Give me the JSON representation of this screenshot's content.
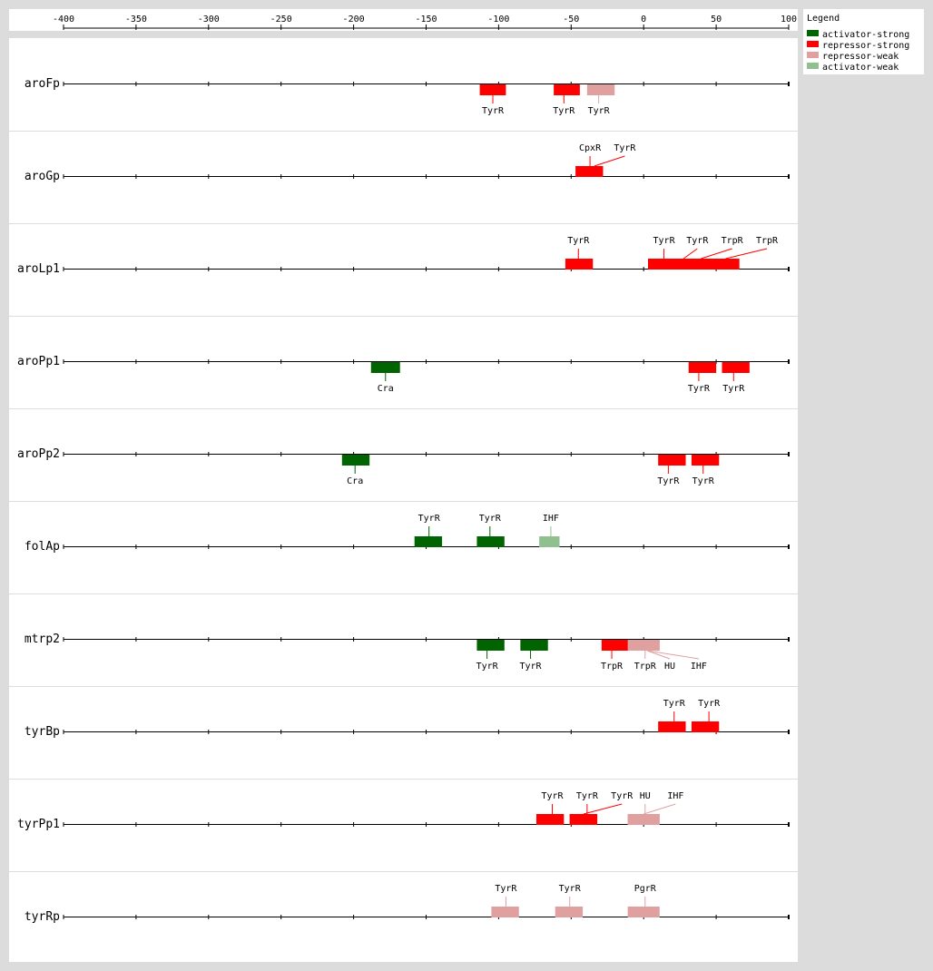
{
  "axis": {
    "ticks": [
      "-400",
      "-350",
      "-300",
      "-250",
      "-200",
      "-150",
      "-100",
      "-50",
      "0",
      "50",
      "100"
    ],
    "min": -400,
    "max": 100
  },
  "legend": {
    "title": "Legend",
    "items": [
      {
        "label": "activator-strong",
        "color": "#006400"
      },
      {
        "label": "repressor-strong",
        "color": "#ff0000"
      },
      {
        "label": "repressor-weak",
        "color": "#e0a0a0"
      },
      {
        "label": "activator-weak",
        "color": "#90c090"
      }
    ]
  },
  "promoters": [
    {
      "name": "aroFp",
      "sites": [
        {
          "label": "TyrR",
          "type": "repressor-strong",
          "start": -113,
          "end": -95,
          "side": "below",
          "label_pos": -104
        },
        {
          "label": "TyrR",
          "type": "repressor-strong",
          "start": -62,
          "end": -44,
          "side": "below",
          "label_pos": -55
        },
        {
          "label": "TyrR",
          "type": "repressor-weak",
          "start": -39,
          "end": -20,
          "side": "below",
          "label_pos": -31
        }
      ]
    },
    {
      "name": "aroGp",
      "sites": [
        {
          "label": "CpxR",
          "type": "repressor-strong",
          "start": -47,
          "end": -28,
          "side": "above",
          "label_pos": -37
        },
        {
          "label": "TyrR",
          "type": "repressor-strong",
          "start": -40,
          "end": -28,
          "side": "above",
          "label_pos": -13
        }
      ]
    },
    {
      "name": "aroLp1",
      "sites": [
        {
          "label": "TyrR",
          "type": "repressor-strong",
          "start": -54,
          "end": -35,
          "side": "above",
          "label_pos": -45
        },
        {
          "label": "TyrR",
          "type": "repressor-strong",
          "start": 3,
          "end": 22,
          "side": "above",
          "label_pos": 14
        },
        {
          "label": "TyrR",
          "type": "repressor-strong",
          "start": 18,
          "end": 37,
          "side": "above",
          "label_pos": 37
        },
        {
          "label": "TrpR",
          "type": "repressor-strong",
          "start": 30,
          "end": 49,
          "side": "above",
          "label_pos": 61
        },
        {
          "label": "TrpR",
          "type": "repressor-strong",
          "start": 47,
          "end": 66,
          "side": "above",
          "label_pos": 85
        }
      ]
    },
    {
      "name": "aroPp1",
      "sites": [
        {
          "label": "Cra",
          "type": "activator-strong",
          "start": -188,
          "end": -168,
          "side": "below",
          "label_pos": -178
        },
        {
          "label": "TyrR",
          "type": "repressor-strong",
          "start": 31,
          "end": 50,
          "side": "below",
          "label_pos": 38
        },
        {
          "label": "TyrR",
          "type": "repressor-strong",
          "start": 54,
          "end": 73,
          "side": "below",
          "label_pos": 62
        }
      ]
    },
    {
      "name": "aroPp2",
      "sites": [
        {
          "label": "Cra",
          "type": "activator-strong",
          "start": -208,
          "end": -189,
          "side": "below",
          "label_pos": -199
        },
        {
          "label": "TyrR",
          "type": "repressor-strong",
          "start": 10,
          "end": 29,
          "side": "below",
          "label_pos": 17
        },
        {
          "label": "TyrR",
          "type": "repressor-strong",
          "start": 33,
          "end": 52,
          "side": "below",
          "label_pos": 41
        }
      ]
    },
    {
      "name": "folAp",
      "sites": [
        {
          "label": "TyrR",
          "type": "activator-strong",
          "start": -158,
          "end": -139,
          "side": "above",
          "label_pos": -148
        },
        {
          "label": "TyrR",
          "type": "activator-strong",
          "start": -115,
          "end": -96,
          "side": "above",
          "label_pos": -106
        },
        {
          "label": "IHF",
          "type": "activator-weak",
          "start": -72,
          "end": -58,
          "side": "above",
          "label_pos": -64
        }
      ]
    },
    {
      "name": "mtrp2",
      "sites": [
        {
          "label": "TyrR",
          "type": "activator-strong",
          "start": -115,
          "end": -96,
          "side": "below",
          "label_pos": -108
        },
        {
          "label": "TyrR",
          "type": "activator-strong",
          "start": -85,
          "end": -66,
          "side": "below",
          "label_pos": -78
        },
        {
          "label": "TrpR",
          "type": "repressor-strong",
          "start": -29,
          "end": -10,
          "side": "below",
          "label_pos": -22
        },
        {
          "label": "TrpR",
          "type": "repressor-weak",
          "start": -11,
          "end": 11,
          "side": "below",
          "label_pos": 1
        },
        {
          "label": "HU",
          "type": "repressor-weak",
          "start": -6,
          "end": 11,
          "side": "below",
          "label_pos": 18
        },
        {
          "label": "IHF",
          "type": "repressor-weak",
          "start": -6,
          "end": 11,
          "side": "below",
          "label_pos": 38
        }
      ]
    },
    {
      "name": "tyrBp",
      "sites": [
        {
          "label": "TyrR",
          "type": "repressor-strong",
          "start": 10,
          "end": 29,
          "side": "above",
          "label_pos": 21
        },
        {
          "label": "TyrR",
          "type": "repressor-strong",
          "start": 33,
          "end": 52,
          "side": "above",
          "label_pos": 45
        }
      ]
    },
    {
      "name": "tyrPp1",
      "sites": [
        {
          "label": "TyrR",
          "type": "repressor-strong",
          "start": -74,
          "end": -55,
          "side": "above",
          "label_pos": -63
        },
        {
          "label": "TyrR",
          "type": "repressor-strong",
          "start": -51,
          "end": -32,
          "side": "above",
          "label_pos": -39
        },
        {
          "label": "TyrR",
          "type": "repressor-strong",
          "start": -51,
          "end": -32,
          "side": "above",
          "label_pos": -15
        },
        {
          "label": "HU",
          "type": "repressor-weak",
          "start": -11,
          "end": 11,
          "side": "above",
          "label_pos": 1
        },
        {
          "label": "IHF",
          "type": "repressor-weak",
          "start": -11,
          "end": 11,
          "side": "above",
          "label_pos": 22
        }
      ]
    },
    {
      "name": "tyrRp",
      "sites": [
        {
          "label": "TyrR",
          "type": "repressor-weak",
          "start": -105,
          "end": -86,
          "side": "above",
          "label_pos": -95
        },
        {
          "label": "TyrR",
          "type": "repressor-weak",
          "start": -61,
          "end": -42,
          "side": "above",
          "label_pos": -51
        },
        {
          "label": "PgrR",
          "type": "repressor-weak",
          "start": -11,
          "end": 11,
          "side": "above",
          "label_pos": 1
        }
      ]
    }
  ]
}
